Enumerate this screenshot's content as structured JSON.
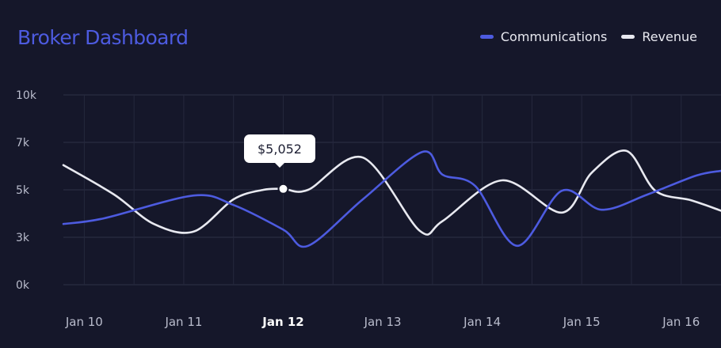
{
  "chart_data": {
    "type": "line",
    "title": "Broker Dashboard",
    "categories": [
      "Jan 10",
      "Jan 11",
      "Jan 12",
      "Jan 13",
      "Jan 14",
      "Jan 15",
      "Jan 16"
    ],
    "active_category": "Jan 12",
    "y_ticks": [
      "0k",
      "3k",
      "5k",
      "7k",
      "10k"
    ],
    "series": [
      {
        "name": "Communications",
        "color": "#4d5be0",
        "x": [
          9.79,
          10.2,
          11.1,
          11.5,
          12.0,
          12.25,
          12.8,
          13.4,
          13.6,
          13.93,
          14.35,
          14.8,
          15.2,
          15.66,
          16.15,
          16.4
        ],
        "values": [
          3.2,
          3.5,
          4.7,
          4.2,
          2.9,
          2.05,
          4.5,
          7.0,
          5.8,
          5.2,
          2.05,
          4.95,
          3.95,
          4.75,
          5.75,
          6.0
        ]
      },
      {
        "name": "Revenue",
        "color": "#e8e9f0",
        "x": [
          9.79,
          10.3,
          10.7,
          11.1,
          11.5,
          11.8,
          12.0,
          12.25,
          12.8,
          13.37,
          13.6,
          14.2,
          14.8,
          15.1,
          15.45,
          15.74,
          16.1,
          16.4
        ],
        "values": [
          6.3,
          4.75,
          3.2,
          2.8,
          4.5,
          5.0,
          5.05,
          5.0,
          6.7,
          2.85,
          3.35,
          5.5,
          3.8,
          5.9,
          7.05,
          4.95,
          4.45,
          3.9
        ]
      }
    ],
    "tooltip": {
      "label": "$5,052",
      "x": 12.0,
      "value": 5.05
    },
    "xlim": [
      9.79,
      16.4
    ],
    "ylim": [
      0,
      10
    ],
    "grid": true,
    "legend": "top-right"
  }
}
